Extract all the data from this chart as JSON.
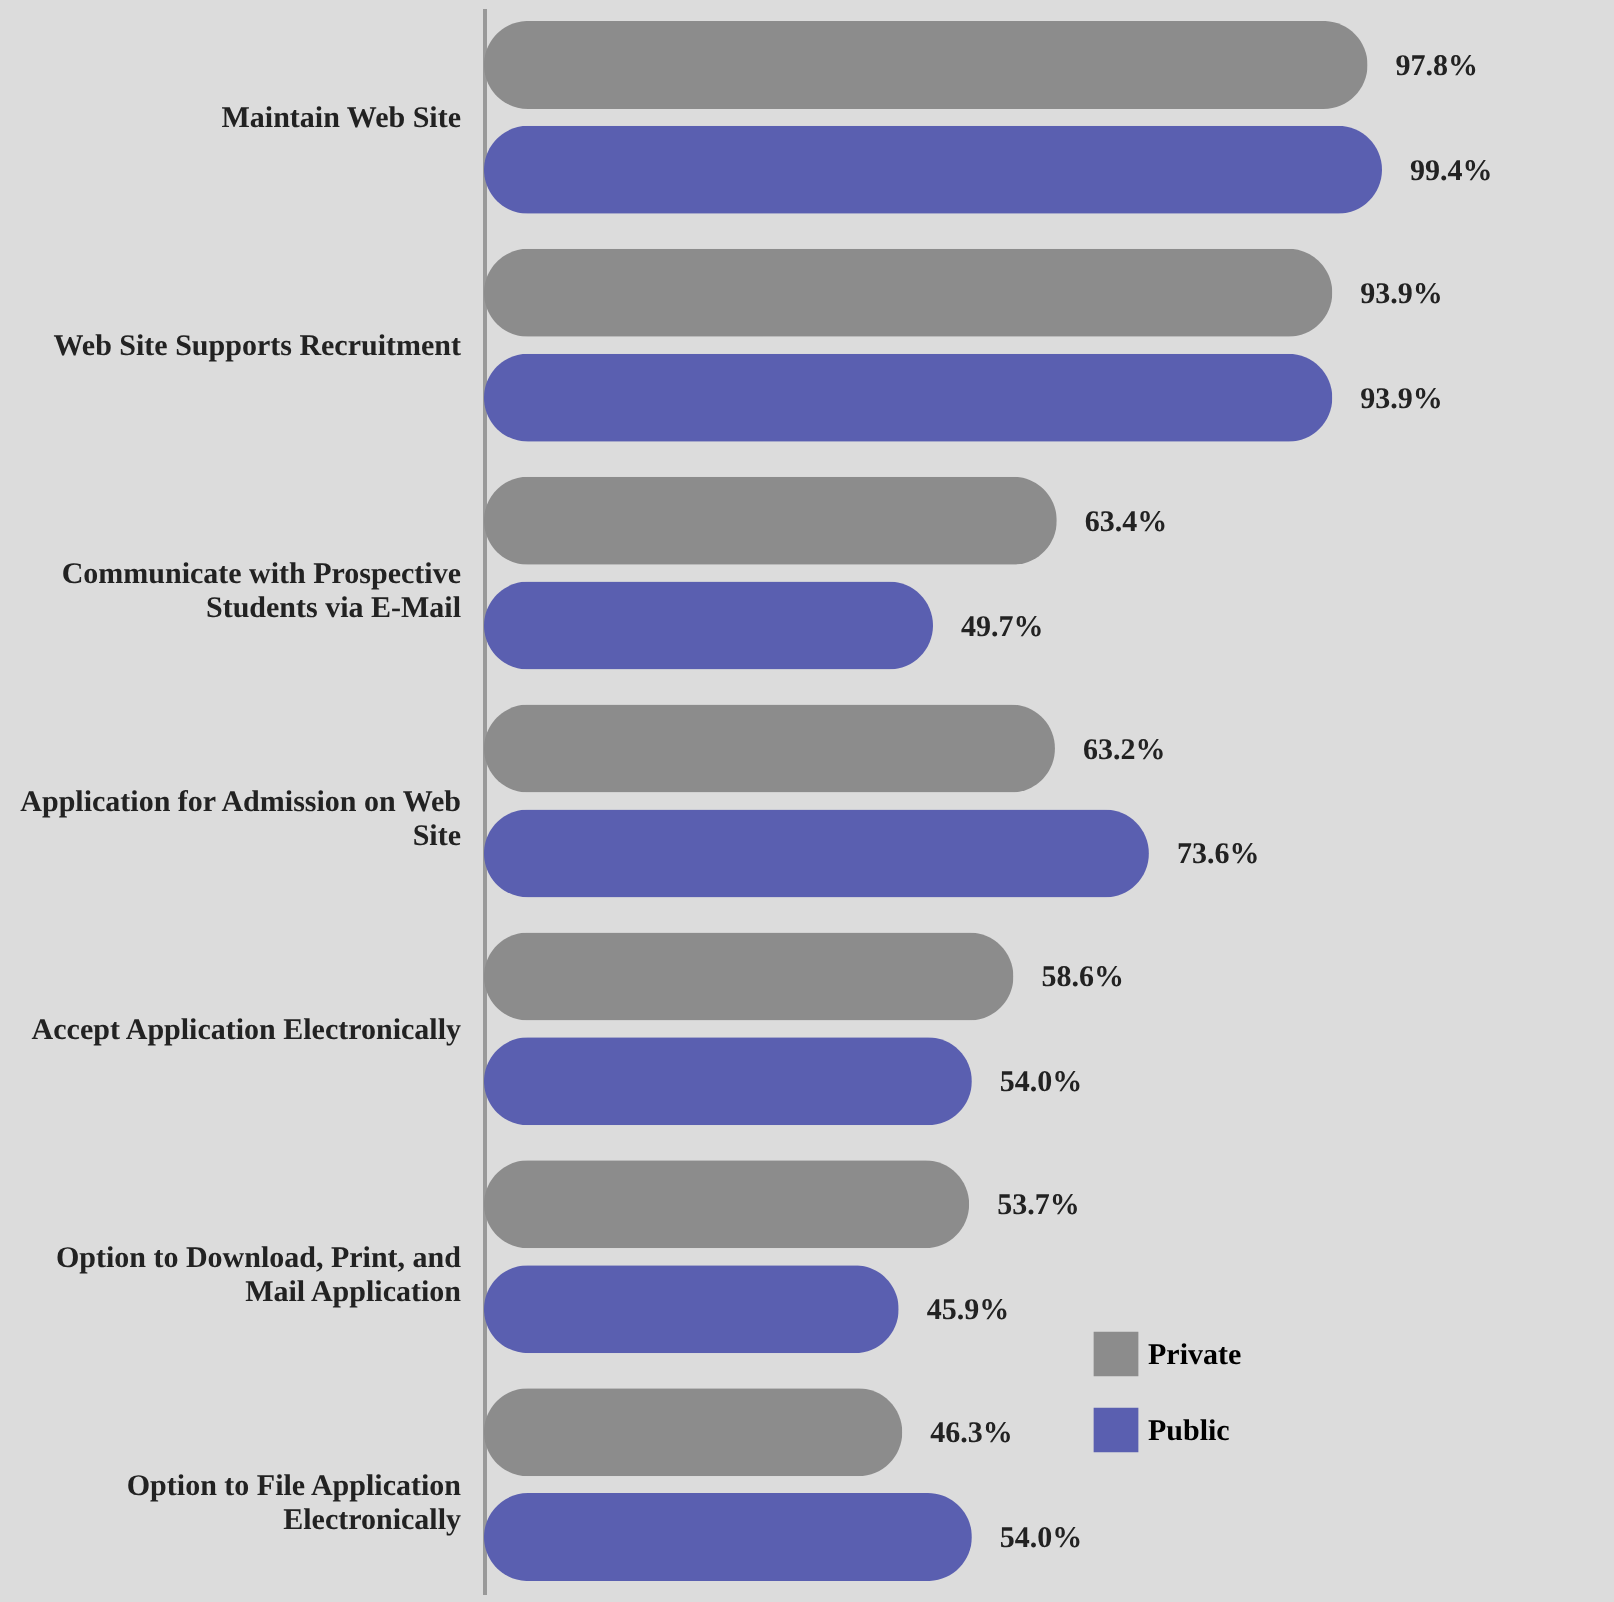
{
  "chart_data": {
    "type": "bar",
    "orientation": "horizontal",
    "legend": "bottom right",
    "categories": [
      "Maintain Web Site",
      "Web Site Supports Recruitment",
      "Communicate with Prospective Students via E-Mail",
      "Application for Admission on Web Site",
      "Accept Application Electronically",
      "Option to Download, Print, and Mail Application",
      "Option to File Application Electronically"
    ],
    "series": [
      {
        "name": "Private",
        "color": "#8c8c8c",
        "values": [
          97.8,
          93.9,
          63.4,
          63.2,
          58.6,
          53.7,
          46.3
        ],
        "value_labels": [
          "97.8%",
          "93.9%",
          "63.4%",
          "63.2%",
          "58.6%",
          "53.7%",
          "46.3%"
        ]
      },
      {
        "name": "Public",
        "color": "#5a5fb0",
        "values": [
          99.4,
          93.9,
          49.7,
          73.6,
          54.0,
          45.9,
          54.0
        ],
        "value_labels": [
          "99.4%",
          "93.9%",
          "49.7%",
          "73.6%",
          "54.0%",
          "45.9%",
          "54.0%"
        ]
      }
    ]
  }
}
